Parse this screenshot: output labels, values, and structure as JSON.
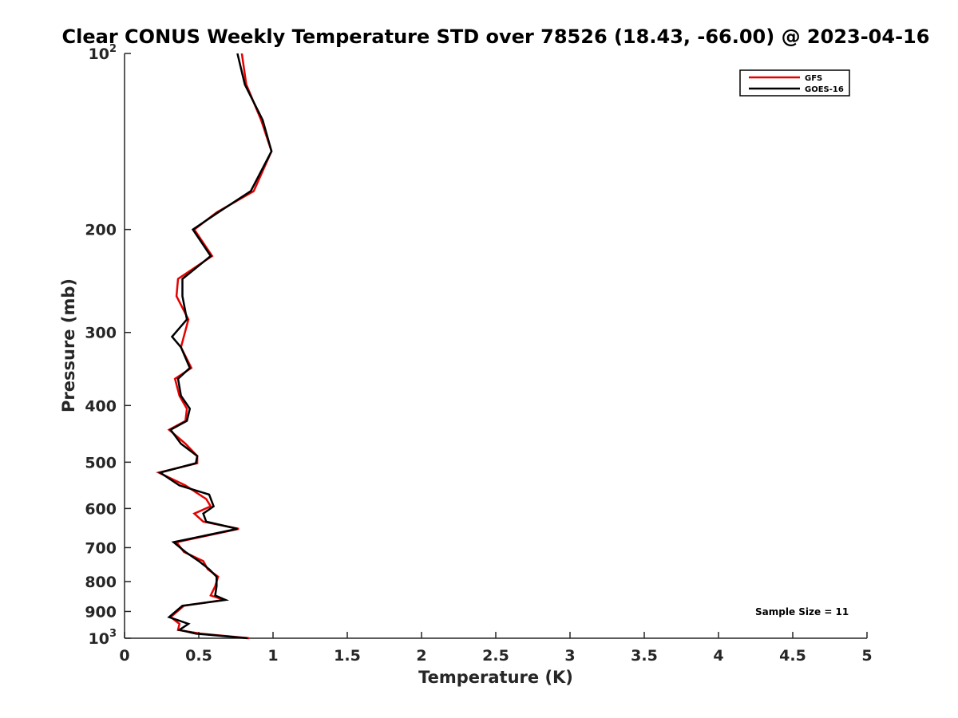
{
  "chart_data": {
    "type": "line",
    "title": "Clear CONUS Weekly Temperature STD over 78526 (18.43, -66.00) @ 2023-04-16",
    "xlabel": "Temperature (K)",
    "ylabel": "Pressure (mb)",
    "xlim": [
      0,
      5
    ],
    "ylim": [
      100,
      1000
    ],
    "y_scale": "log",
    "y_reversed": true,
    "grid": false,
    "legend_position": "top-right",
    "x_ticks": [
      {
        "value": 0,
        "label": "0"
      },
      {
        "value": 0.5,
        "label": "0.5"
      },
      {
        "value": 1,
        "label": "1"
      },
      {
        "value": 1.5,
        "label": "1.5"
      },
      {
        "value": 2,
        "label": "2"
      },
      {
        "value": 2.5,
        "label": "2.5"
      },
      {
        "value": 3,
        "label": "3"
      },
      {
        "value": 3.5,
        "label": "3.5"
      },
      {
        "value": 4,
        "label": "4"
      },
      {
        "value": 4.5,
        "label": "4.5"
      },
      {
        "value": 5,
        "label": "5"
      }
    ],
    "y_ticks": [
      {
        "value": 100,
        "base": "10",
        "exp": "2"
      },
      {
        "value": 200,
        "base": "200",
        "exp": ""
      },
      {
        "value": 300,
        "base": "300",
        "exp": ""
      },
      {
        "value": 400,
        "base": "400",
        "exp": ""
      },
      {
        "value": 500,
        "base": "500",
        "exp": ""
      },
      {
        "value": 600,
        "base": "600",
        "exp": ""
      },
      {
        "value": 700,
        "base": "700",
        "exp": ""
      },
      {
        "value": 800,
        "base": "800",
        "exp": ""
      },
      {
        "value": 900,
        "base": "900",
        "exp": ""
      },
      {
        "value": 1000,
        "base": "10",
        "exp": "3"
      }
    ],
    "annotation": "Sample Size = 11",
    "series": [
      {
        "name": "GFS",
        "color": "#e60000",
        "points": [
          [
            0.79,
            100
          ],
          [
            0.82,
            113
          ],
          [
            0.92,
            130
          ],
          [
            0.99,
            147
          ],
          [
            0.87,
            172
          ],
          [
            0.62,
            187
          ],
          [
            0.47,
            200
          ],
          [
            0.59,
            222
          ],
          [
            0.36,
            243
          ],
          [
            0.35,
            260
          ],
          [
            0.43,
            285
          ],
          [
            0.38,
            318
          ],
          [
            0.45,
            345
          ],
          [
            0.34,
            360
          ],
          [
            0.37,
            385
          ],
          [
            0.42,
            405
          ],
          [
            0.41,
            425
          ],
          [
            0.3,
            440
          ],
          [
            0.41,
            465
          ],
          [
            0.49,
            488
          ],
          [
            0.49,
            502
          ],
          [
            0.23,
            521
          ],
          [
            0.41,
            548
          ],
          [
            0.55,
            578
          ],
          [
            0.58,
            595
          ],
          [
            0.47,
            612
          ],
          [
            0.53,
            632
          ],
          [
            0.77,
            650
          ],
          [
            0.35,
            685
          ],
          [
            0.4,
            712
          ],
          [
            0.53,
            738
          ],
          [
            0.56,
            762
          ],
          [
            0.63,
            785
          ],
          [
            0.61,
            815
          ],
          [
            0.58,
            845
          ],
          [
            0.67,
            860
          ],
          [
            0.4,
            880
          ],
          [
            0.31,
            920
          ],
          [
            0.37,
            945
          ],
          [
            0.36,
            968
          ],
          [
            0.51,
            982
          ],
          [
            0.84,
            1000
          ]
        ]
      },
      {
        "name": "GOES-16",
        "color": "#000000",
        "points": [
          [
            0.76,
            100
          ],
          [
            0.81,
            113
          ],
          [
            0.93,
            130
          ],
          [
            0.99,
            147
          ],
          [
            0.85,
            172
          ],
          [
            0.63,
            187
          ],
          [
            0.46,
            200
          ],
          [
            0.58,
            222
          ],
          [
            0.39,
            243
          ],
          [
            0.39,
            260
          ],
          [
            0.42,
            285
          ],
          [
            0.32,
            305
          ],
          [
            0.38,
            318
          ],
          [
            0.44,
            345
          ],
          [
            0.36,
            360
          ],
          [
            0.38,
            385
          ],
          [
            0.44,
            405
          ],
          [
            0.42,
            425
          ],
          [
            0.31,
            440
          ],
          [
            0.38,
            465
          ],
          [
            0.49,
            488
          ],
          [
            0.48,
            502
          ],
          [
            0.24,
            521
          ],
          [
            0.37,
            548
          ],
          [
            0.57,
            568
          ],
          [
            0.6,
            595
          ],
          [
            0.53,
            612
          ],
          [
            0.55,
            632
          ],
          [
            0.76,
            650
          ],
          [
            0.33,
            685
          ],
          [
            0.41,
            712
          ],
          [
            0.5,
            738
          ],
          [
            0.57,
            762
          ],
          [
            0.62,
            785
          ],
          [
            0.62,
            815
          ],
          [
            0.61,
            845
          ],
          [
            0.68,
            860
          ],
          [
            0.39,
            880
          ],
          [
            0.3,
            920
          ],
          [
            0.43,
            945
          ],
          [
            0.37,
            968
          ],
          [
            0.48,
            982
          ],
          [
            0.83,
            1000
          ]
        ]
      }
    ]
  }
}
